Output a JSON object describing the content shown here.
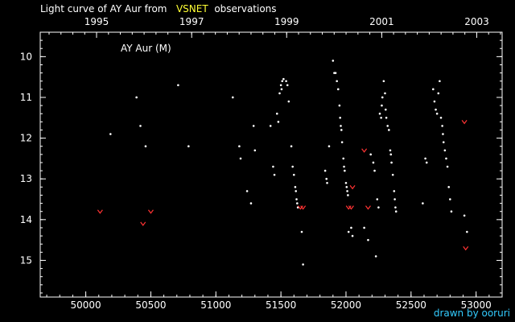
{
  "title": {
    "prefix": "Light curve of AY Aur from",
    "highlight": "VSNET",
    "suffix": "observations"
  },
  "credit": "drawn by ooruri",
  "colors": {
    "background": "#000000",
    "axis": "#ffffff",
    "visual_points": "#ffffff",
    "upper_limits": "#ff3333",
    "title_highlight": "#ffff33",
    "credit": "#33ccff"
  },
  "chart_data": {
    "type": "scatter",
    "title": "Light curve of AY Aur from VSNET observations",
    "annotation": "AY Aur (M)",
    "x_axis": {
      "range": [
        49650,
        53200
      ],
      "ticks": [
        50000,
        50500,
        51000,
        51500,
        52000,
        52500,
        53000
      ],
      "tick_labels": [
        "50000",
        "50500",
        "51000",
        "51500",
        "52000",
        "52500",
        "53000"
      ],
      "minor_step": 100
    },
    "top_axis": {
      "ticks": [
        50083,
        50814,
        51544,
        52275,
        53005
      ],
      "tick_labels": [
        "1995",
        "1997",
        "1999",
        "2001",
        "2003"
      ]
    },
    "y_axis": {
      "range": [
        9.4,
        15.9
      ],
      "inverted": true,
      "ticks": [
        10,
        11,
        12,
        13,
        14,
        15
      ],
      "tick_labels": [
        "10",
        "11",
        "12",
        "13",
        "14",
        "15"
      ],
      "minor_step": 0.2
    },
    "grid": false,
    "series": [
      {
        "kind": "visual",
        "points": [
          [
            50190,
            11.9
          ],
          [
            50390,
            11.0
          ],
          [
            50420,
            11.7
          ],
          [
            50460,
            12.2
          ],
          [
            50710,
            10.7
          ],
          [
            50790,
            12.2
          ],
          [
            51130,
            11.0
          ],
          [
            51180,
            12.2
          ],
          [
            51190,
            12.5
          ],
          [
            51240,
            13.3
          ],
          [
            51270,
            13.6
          ],
          [
            51290,
            11.7
          ],
          [
            51300,
            12.3
          ],
          [
            51420,
            11.7
          ],
          [
            51440,
            12.7
          ],
          [
            51450,
            12.9
          ],
          [
            51470,
            11.4
          ],
          [
            51480,
            11.6
          ],
          [
            51490,
            10.9
          ],
          [
            51500,
            10.7
          ],
          [
            51505,
            10.8
          ],
          [
            51510,
            10.6
          ],
          [
            51520,
            10.55
          ],
          [
            51540,
            10.6
          ],
          [
            51550,
            10.7
          ],
          [
            51560,
            11.1
          ],
          [
            51580,
            12.2
          ],
          [
            51590,
            12.7
          ],
          [
            51600,
            12.9
          ],
          [
            51610,
            13.2
          ],
          [
            51615,
            13.3
          ],
          [
            51620,
            13.5
          ],
          [
            51625,
            13.6
          ],
          [
            51630,
            13.7
          ],
          [
            51660,
            14.3
          ],
          [
            51670,
            15.1
          ],
          [
            51840,
            12.8
          ],
          [
            51850,
            13.0
          ],
          [
            51855,
            13.1
          ],
          [
            51870,
            12.2
          ],
          [
            51900,
            10.1
          ],
          [
            51910,
            10.4
          ],
          [
            51920,
            10.4
          ],
          [
            51930,
            10.6
          ],
          [
            51940,
            10.8
          ],
          [
            51950,
            11.2
          ],
          [
            51955,
            11.5
          ],
          [
            51960,
            11.7
          ],
          [
            51965,
            11.8
          ],
          [
            51970,
            12.1
          ],
          [
            51980,
            12.5
          ],
          [
            51985,
            12.7
          ],
          [
            51990,
            12.8
          ],
          [
            52000,
            13.1
          ],
          [
            52005,
            13.2
          ],
          [
            52010,
            13.3
          ],
          [
            52015,
            13.4
          ],
          [
            52020,
            14.3
          ],
          [
            52040,
            14.2
          ],
          [
            52050,
            14.4
          ],
          [
            52140,
            14.2
          ],
          [
            52170,
            14.5
          ],
          [
            52190,
            12.4
          ],
          [
            52210,
            12.6
          ],
          [
            52220,
            12.8
          ],
          [
            52230,
            14.9
          ],
          [
            52240,
            13.5
          ],
          [
            52250,
            13.7
          ],
          [
            52260,
            11.4
          ],
          [
            52270,
            11.5
          ],
          [
            52275,
            11.2
          ],
          [
            52280,
            11.0
          ],
          [
            52290,
            10.6
          ],
          [
            52300,
            10.9
          ],
          [
            52305,
            11.3
          ],
          [
            52310,
            11.5
          ],
          [
            52320,
            11.7
          ],
          [
            52330,
            11.8
          ],
          [
            52340,
            12.3
          ],
          [
            52345,
            12.4
          ],
          [
            52350,
            12.6
          ],
          [
            52360,
            12.9
          ],
          [
            52370,
            13.3
          ],
          [
            52375,
            13.5
          ],
          [
            52380,
            13.7
          ],
          [
            52385,
            13.8
          ],
          [
            52590,
            13.6
          ],
          [
            52610,
            12.5
          ],
          [
            52620,
            12.6
          ],
          [
            52670,
            10.8
          ],
          [
            52680,
            11.1
          ],
          [
            52690,
            11.3
          ],
          [
            52700,
            11.4
          ],
          [
            52710,
            10.9
          ],
          [
            52720,
            10.6
          ],
          [
            52730,
            11.5
          ],
          [
            52740,
            11.7
          ],
          [
            52745,
            11.9
          ],
          [
            52750,
            12.1
          ],
          [
            52760,
            12.3
          ],
          [
            52770,
            12.5
          ],
          [
            52780,
            12.7
          ],
          [
            52790,
            13.2
          ],
          [
            52800,
            13.5
          ],
          [
            52810,
            13.8
          ],
          [
            52910,
            13.9
          ],
          [
            52930,
            14.3
          ]
        ]
      },
      {
        "kind": "upper_limit",
        "points": [
          [
            50110,
            13.8
          ],
          [
            50440,
            14.1
          ],
          [
            50500,
            13.8
          ],
          [
            51650,
            13.7
          ],
          [
            51670,
            13.7
          ],
          [
            52020,
            13.7
          ],
          [
            52040,
            13.7
          ],
          [
            52050,
            13.2
          ],
          [
            52140,
            12.3
          ],
          [
            52170,
            13.7
          ],
          [
            52910,
            11.6
          ],
          [
            52920,
            14.7
          ]
        ]
      }
    ]
  }
}
